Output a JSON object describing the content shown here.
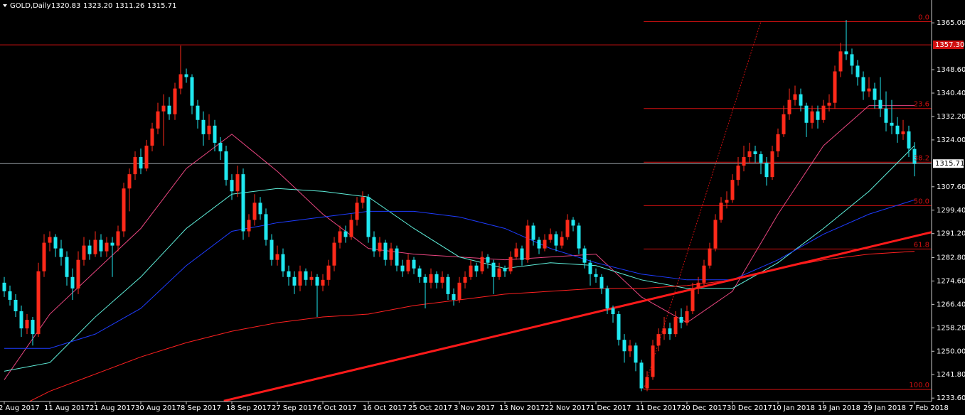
{
  "chart_data": {
    "type": "candlestick",
    "symbol": "GOLD,Daily",
    "last_bar_labels": [
      "1320.83",
      "1323.20",
      "1311.26",
      "1315.71"
    ],
    "up_color": "#ff2a1a",
    "down_color": "#20e8f0",
    "ylim": [
      1232.4,
      1373.0
    ],
    "yticks": [
      {
        "value": 1365,
        "label": "1365.00"
      },
      {
        "value": 1348.6,
        "label": "1348.60"
      },
      {
        "value": 1340.4,
        "label": "1340.40"
      },
      {
        "value": 1332.2,
        "label": "1332.20"
      },
      {
        "value": 1324,
        "label": "1324.00"
      },
      {
        "value": 1307.6,
        "label": "1307.60"
      },
      {
        "value": 1299.4,
        "label": "1299.40"
      },
      {
        "value": 1291.2,
        "label": "1291.20"
      },
      {
        "value": 1282.8,
        "label": "1282.80"
      },
      {
        "value": 1274.6,
        "label": "1274.60"
      },
      {
        "value": 1266.4,
        "label": "1266.40"
      },
      {
        "value": 1258.2,
        "label": "1258.20"
      },
      {
        "value": 1250,
        "label": "1250.00"
      },
      {
        "value": 1241.8,
        "label": "1241.80"
      },
      {
        "value": 1233.6,
        "label": "1233.60"
      }
    ],
    "categories": [
      "2 Aug 2017",
      null,
      null,
      null,
      null,
      null,
      null,
      null,
      "11 Aug 2017",
      null,
      null,
      null,
      null,
      null,
      null,
      null,
      "21 Aug 2017",
      null,
      null,
      null,
      null,
      null,
      null,
      null,
      "30 Aug 2017",
      null,
      null,
      null,
      null,
      null,
      null,
      null,
      "8 Sep 2017",
      null,
      null,
      null,
      null,
      null,
      null,
      null,
      "18 Sep 2017",
      null,
      null,
      null,
      null,
      null,
      null,
      null,
      "27 Sep 2017",
      null,
      null,
      null,
      null,
      null,
      null,
      null,
      "6 Oct 2017",
      null,
      null,
      null,
      null,
      null,
      null,
      null,
      "16 Oct 2017",
      null,
      null,
      null,
      null,
      null,
      null,
      null,
      "25 Oct 2017",
      null,
      null,
      null,
      null,
      null,
      null,
      null,
      "3 Nov 2017",
      null,
      null,
      null,
      null,
      null,
      null,
      null,
      "13 Nov 2017",
      null,
      null,
      null,
      null,
      null,
      null,
      null,
      "22 Nov 2017",
      null,
      null,
      null,
      null,
      null,
      null,
      null,
      "1 Dec 2017",
      null,
      null,
      null,
      null,
      null,
      null,
      null,
      "11 Dec 2017",
      null,
      null,
      null,
      null,
      null,
      null,
      null,
      "20 Dec 2017",
      null,
      null,
      null,
      null,
      null,
      null,
      null,
      "30 Dec 2017",
      null,
      null,
      null,
      null,
      null,
      null,
      null,
      "10 Jan 2018",
      null,
      null,
      null,
      null,
      null,
      null,
      null,
      "19 Jan 2018",
      null,
      null,
      null,
      null,
      null,
      null,
      null,
      "29 Jan 2018",
      null,
      null,
      null,
      null,
      null,
      null,
      null,
      "7 Feb 2018"
    ],
    "ohlc": [
      [
        1274,
        1276,
        1269,
        1271
      ],
      [
        1271,
        1273,
        1266,
        1268
      ],
      [
        1268,
        1270,
        1262,
        1264
      ],
      [
        1264,
        1266,
        1255,
        1258
      ],
      [
        1258,
        1263,
        1256,
        1261
      ],
      [
        1261,
        1262,
        1252,
        1256
      ],
      [
        1256,
        1281,
        1255,
        1278
      ],
      [
        1278,
        1291,
        1276,
        1288
      ],
      [
        1288,
        1292,
        1285,
        1290
      ],
      [
        1290,
        1291,
        1283,
        1286
      ],
      [
        1286,
        1289,
        1280,
        1283
      ],
      [
        1283,
        1285,
        1273,
        1276
      ],
      [
        1276,
        1279,
        1268,
        1272
      ],
      [
        1272,
        1285,
        1270,
        1282
      ],
      [
        1282,
        1290,
        1280,
        1287
      ],
      [
        1287,
        1289,
        1282,
        1284
      ],
      [
        1284,
        1292,
        1283,
        1289
      ],
      [
        1289,
        1291,
        1283,
        1285
      ],
      [
        1285,
        1290,
        1283,
        1288
      ],
      [
        1288,
        1290,
        1276,
        1287
      ],
      [
        1287,
        1294,
        1285,
        1292
      ],
      [
        1292,
        1309,
        1290,
        1307
      ],
      [
        1307,
        1314,
        1299,
        1312
      ],
      [
        1312,
        1320,
        1310,
        1318
      ],
      [
        1318,
        1321,
        1312,
        1314
      ],
      [
        1314,
        1324,
        1313,
        1322
      ],
      [
        1322,
        1330,
        1320,
        1328
      ],
      [
        1328,
        1337,
        1326,
        1334
      ],
      [
        1334,
        1340,
        1322,
        1336
      ],
      [
        1336,
        1339,
        1331,
        1333
      ],
      [
        1333,
        1344,
        1331,
        1342
      ],
      [
        1342,
        1357,
        1340,
        1347
      ],
      [
        1347,
        1349,
        1344,
        1346
      ],
      [
        1346,
        1347,
        1333,
        1336
      ],
      [
        1336,
        1338,
        1328,
        1331
      ],
      [
        1331,
        1334,
        1322,
        1326
      ],
      [
        1326,
        1333,
        1324,
        1329
      ],
      [
        1329,
        1331,
        1320,
        1323
      ],
      [
        1323,
        1325,
        1317,
        1320
      ],
      [
        1320,
        1322,
        1308,
        1310
      ],
      [
        1310,
        1312,
        1303,
        1306
      ],
      [
        1306,
        1315,
        1304,
        1312
      ],
      [
        1312,
        1314,
        1289,
        1292
      ],
      [
        1292,
        1298,
        1290,
        1296
      ],
      [
        1296,
        1305,
        1294,
        1302
      ],
      [
        1302,
        1304,
        1296,
        1298
      ],
      [
        1298,
        1300,
        1287,
        1289
      ],
      [
        1289,
        1291,
        1280,
        1282
      ],
      [
        1282,
        1287,
        1280,
        1284
      ],
      [
        1284,
        1286,
        1276,
        1278
      ],
      [
        1278,
        1280,
        1273,
        1276
      ],
      [
        1276,
        1278,
        1270,
        1273
      ],
      [
        1273,
        1280,
        1271,
        1278
      ],
      [
        1278,
        1279,
        1273,
        1275
      ],
      [
        1275,
        1278,
        1273,
        1276
      ],
      [
        1276,
        1277,
        1262,
        1273
      ],
      [
        1273,
        1277,
        1271,
        1275
      ],
      [
        1275,
        1282,
        1273,
        1280
      ],
      [
        1280,
        1290,
        1278,
        1288
      ],
      [
        1288,
        1294,
        1286,
        1292
      ],
      [
        1292,
        1294,
        1288,
        1290
      ],
      [
        1290,
        1298,
        1289,
        1296
      ],
      [
        1296,
        1304,
        1294,
        1302
      ],
      [
        1302,
        1306,
        1300,
        1304
      ],
      [
        1304,
        1305,
        1288,
        1290
      ],
      [
        1290,
        1292,
        1283,
        1285
      ],
      [
        1285,
        1290,
        1283,
        1288
      ],
      [
        1288,
        1289,
        1280,
        1282
      ],
      [
        1282,
        1288,
        1280,
        1286
      ],
      [
        1286,
        1287,
        1278,
        1280
      ],
      [
        1280,
        1282,
        1276,
        1278
      ],
      [
        1278,
        1284,
        1277,
        1282
      ],
      [
        1282,
        1283,
        1277,
        1279
      ],
      [
        1279,
        1280,
        1274,
        1276
      ],
      [
        1276,
        1277,
        1265,
        1274
      ],
      [
        1274,
        1279,
        1272,
        1277
      ],
      [
        1277,
        1278,
        1272,
        1274
      ],
      [
        1274,
        1278,
        1272,
        1276
      ],
      [
        1276,
        1277,
        1268,
        1270
      ],
      [
        1270,
        1272,
        1266,
        1268
      ],
      [
        1268,
        1276,
        1267,
        1274
      ],
      [
        1274,
        1278,
        1272,
        1276
      ],
      [
        1276,
        1282,
        1275,
        1280
      ],
      [
        1280,
        1281,
        1276,
        1278
      ],
      [
        1278,
        1285,
        1277,
        1283
      ],
      [
        1283,
        1284,
        1279,
        1281
      ],
      [
        1281,
        1282,
        1270,
        1276
      ],
      [
        1276,
        1281,
        1275,
        1279
      ],
      [
        1279,
        1280,
        1276,
        1278
      ],
      [
        1278,
        1285,
        1277,
        1283
      ],
      [
        1283,
        1288,
        1282,
        1286
      ],
      [
        1286,
        1287,
        1280,
        1282
      ],
      [
        1282,
        1296,
        1281,
        1294
      ],
      [
        1294,
        1295,
        1287,
        1289
      ],
      [
        1289,
        1290,
        1284,
        1286
      ],
      [
        1286,
        1291,
        1285,
        1289
      ],
      [
        1289,
        1293,
        1288,
        1291
      ],
      [
        1291,
        1292,
        1285,
        1287
      ],
      [
        1287,
        1292,
        1286,
        1290
      ],
      [
        1290,
        1298,
        1289,
        1296
      ],
      [
        1296,
        1297,
        1292,
        1294
      ],
      [
        1294,
        1295,
        1284,
        1286
      ],
      [
        1286,
        1287,
        1279,
        1281
      ],
      [
        1281,
        1282,
        1273,
        1277
      ],
      [
        1277,
        1279,
        1274,
        1276
      ],
      [
        1276,
        1277,
        1270,
        1272
      ],
      [
        1272,
        1273,
        1263,
        1265
      ],
      [
        1265,
        1266,
        1260,
        1263
      ],
      [
        1263,
        1264,
        1252,
        1254
      ],
      [
        1254,
        1256,
        1246,
        1250
      ],
      [
        1250,
        1254,
        1248,
        1252
      ],
      [
        1252,
        1253,
        1243,
        1246
      ],
      [
        1246,
        1247,
        1236,
        1237
      ],
      [
        1237,
        1243,
        1236,
        1241
      ],
      [
        1241,
        1254,
        1240,
        1252
      ],
      [
        1252,
        1258,
        1250,
        1256
      ],
      [
        1256,
        1262,
        1254,
        1258
      ],
      [
        1258,
        1260,
        1254,
        1256
      ],
      [
        1256,
        1264,
        1255,
        1262
      ],
      [
        1262,
        1265,
        1258,
        1260
      ],
      [
        1260,
        1266,
        1259,
        1264
      ],
      [
        1264,
        1274,
        1263,
        1272
      ],
      [
        1272,
        1276,
        1270,
        1274
      ],
      [
        1274,
        1282,
        1273,
        1280
      ],
      [
        1280,
        1288,
        1279,
        1286
      ],
      [
        1286,
        1298,
        1285,
        1296
      ],
      [
        1296,
        1304,
        1295,
        1302
      ],
      [
        1302,
        1306,
        1300,
        1303
      ],
      [
        1303,
        1312,
        1302,
        1310
      ],
      [
        1310,
        1318,
        1308,
        1315
      ],
      [
        1315,
        1322,
        1313,
        1318
      ],
      [
        1318,
        1323,
        1316,
        1320
      ],
      [
        1320,
        1322,
        1316,
        1319
      ],
      [
        1319,
        1320,
        1312,
        1316
      ],
      [
        1316,
        1318,
        1308,
        1311
      ],
      [
        1311,
        1322,
        1310,
        1320
      ],
      [
        1320,
        1328,
        1318,
        1326
      ],
      [
        1326,
        1336,
        1325,
        1333
      ],
      [
        1333,
        1342,
        1331,
        1338
      ],
      [
        1338,
        1343,
        1336,
        1340
      ],
      [
        1340,
        1342,
        1334,
        1336
      ],
      [
        1336,
        1337,
        1325,
        1330
      ],
      [
        1330,
        1336,
        1328,
        1334
      ],
      [
        1334,
        1336,
        1328,
        1331
      ],
      [
        1331,
        1338,
        1330,
        1336
      ],
      [
        1336,
        1340,
        1334,
        1337
      ],
      [
        1337,
        1350,
        1335,
        1348
      ],
      [
        1348,
        1358,
        1346,
        1355
      ],
      [
        1355,
        1366,
        1352,
        1354
      ],
      [
        1354,
        1356,
        1347,
        1350
      ],
      [
        1350,
        1352,
        1343,
        1346
      ],
      [
        1346,
        1348,
        1338,
        1341
      ],
      [
        1341,
        1346,
        1339,
        1342
      ],
      [
        1342,
        1344,
        1335,
        1338
      ],
      [
        1338,
        1346,
        1332,
        1335
      ],
      [
        1335,
        1341,
        1327,
        1330
      ],
      [
        1330,
        1338,
        1326,
        1329
      ],
      [
        1329,
        1332,
        1323,
        1326
      ],
      [
        1326,
        1331,
        1324,
        1327
      ],
      [
        1327,
        1329,
        1318,
        1321
      ],
      [
        1320.83,
        1323.2,
        1311.26,
        1315.71
      ]
    ],
    "ma_x": [
      0,
      8,
      16,
      24,
      32,
      40,
      48,
      56,
      64,
      72,
      80,
      88,
      96,
      104,
      112,
      120,
      128,
      136,
      144,
      152,
      160
    ],
    "ma": [
      {
        "color": "#e8457f",
        "values": [
          1240,
          1263,
          1278,
          1293,
          1314,
          1326,
          1313,
          1298,
          1286,
          1284,
          1283,
          1282,
          1283,
          1284,
          1269,
          1260,
          1271,
          1298,
          1322,
          1336,
          1336
        ]
      },
      {
        "color": "#5ff0dc",
        "values": [
          1243,
          1246,
          1262,
          1276,
          1293,
          1305,
          1307,
          1306,
          1304,
          1293,
          1283,
          1279,
          1281,
          1280,
          1275,
          1272,
          1272,
          1281,
          1293,
          1306,
          1322
        ]
      },
      {
        "color": "#1e3cff",
        "values": [
          1251,
          1251,
          1256,
          1265,
          1280,
          1292,
          1295,
          1297,
          1299,
          1299,
          1297,
          1293,
          1286,
          1281,
          1277,
          1275,
          1275,
          1282,
          1291,
          1298,
          1303
        ]
      },
      {
        "color": "#ff2020",
        "values": [
          1228,
          1236,
          1242,
          1248,
          1253,
          1257,
          1260,
          1262,
          1263,
          1266,
          1268,
          1270,
          1271,
          1272,
          1272,
          1273,
          1275,
          1279,
          1282,
          1284,
          1285
        ]
      }
    ],
    "trendline": {
      "color": "#ff1a1a",
      "x": [
        38.6,
        163
      ],
      "values": [
        1232.6,
        1291.7
      ]
    },
    "hline": {
      "color": "#d01010",
      "value": 1357.3,
      "label": "1357.30"
    },
    "fib": {
      "color": "#d01010",
      "x": [
        112.4,
        133
      ],
      "levels": [
        1365.4,
        1335.0,
        1316.2,
        1301.0,
        1285.8,
        1236.6
      ],
      "labels": [
        "0.0",
        "23.6",
        "38.2",
        "50.0",
        "61.8",
        "100.0"
      ]
    }
  }
}
